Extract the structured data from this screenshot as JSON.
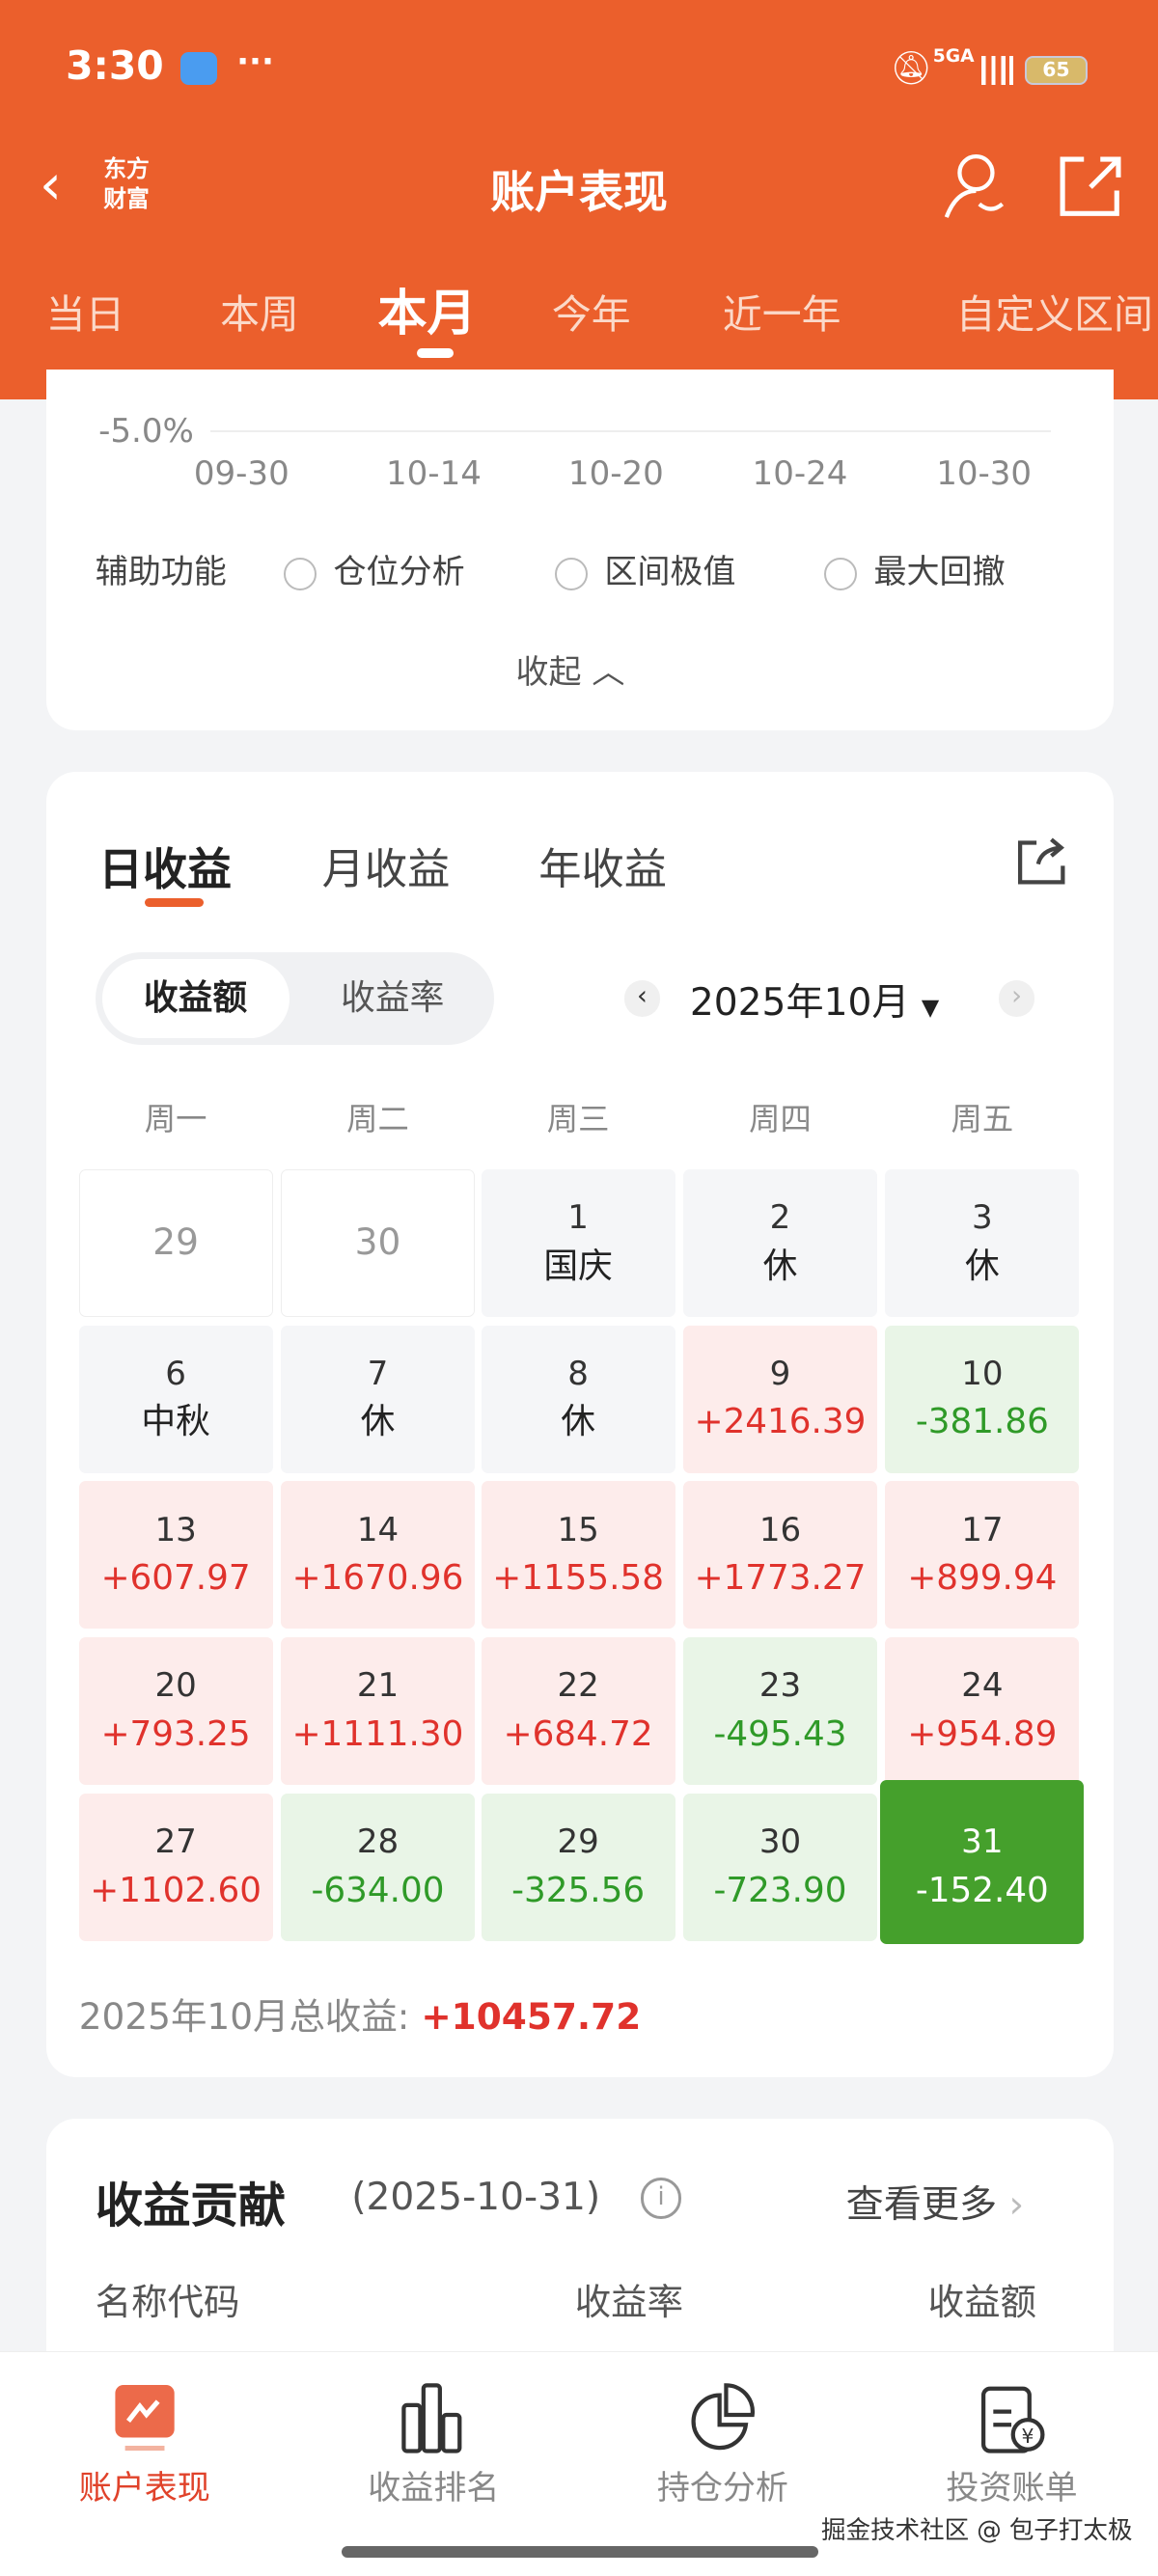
{
  "status_bar": {
    "time": "3:30",
    "more": "···",
    "network": "5GA",
    "battery": "65"
  },
  "header": {
    "title": "账户表现",
    "logo_text": "东方财富",
    "tabs": [
      {
        "label": "当日"
      },
      {
        "label": "本周"
      },
      {
        "label": "本月",
        "active": true
      },
      {
        "label": "今年"
      },
      {
        "label": "近一年"
      },
      {
        "label": "自定义区间"
      }
    ]
  },
  "chart_tail": {
    "y_tick": "-5.0%",
    "x_ticks": [
      "09-30",
      "10-14",
      "10-20",
      "10-24",
      "10-30"
    ],
    "aux_label": "辅助功能",
    "options": [
      "仓位分析",
      "区间极值",
      "最大回撤"
    ],
    "collapse": "收起"
  },
  "income": {
    "tabs": [
      "日收益",
      "月收益",
      "年收益"
    ],
    "active_tab": "日收益",
    "toggle": [
      "收益额",
      "收益率"
    ],
    "toggle_selected": "收益额",
    "month": "2025年10月",
    "weekdays": [
      "周一",
      "周二",
      "周三",
      "周四",
      "周五"
    ],
    "cells": [
      {
        "d": "29",
        "v": "",
        "t": "empty"
      },
      {
        "d": "30",
        "v": "",
        "t": "empty"
      },
      {
        "d": "1",
        "v": "国庆",
        "t": "hol"
      },
      {
        "d": "2",
        "v": "休",
        "t": "hol"
      },
      {
        "d": "3",
        "v": "休",
        "t": "hol"
      },
      {
        "d": "6",
        "v": "中秋",
        "t": "hol"
      },
      {
        "d": "7",
        "v": "休",
        "t": "hol"
      },
      {
        "d": "8",
        "v": "休",
        "t": "hol"
      },
      {
        "d": "9",
        "v": "+2416.39",
        "t": "up"
      },
      {
        "d": "10",
        "v": "-381.86",
        "t": "dn"
      },
      {
        "d": "13",
        "v": "+607.97",
        "t": "up"
      },
      {
        "d": "14",
        "v": "+1670.96",
        "t": "up"
      },
      {
        "d": "15",
        "v": "+1155.58",
        "t": "up"
      },
      {
        "d": "16",
        "v": "+1773.27",
        "t": "up"
      },
      {
        "d": "17",
        "v": "+899.94",
        "t": "up"
      },
      {
        "d": "20",
        "v": "+793.25",
        "t": "up"
      },
      {
        "d": "21",
        "v": "+1111.30",
        "t": "up"
      },
      {
        "d": "22",
        "v": "+684.72",
        "t": "up"
      },
      {
        "d": "23",
        "v": "-495.43",
        "t": "dn"
      },
      {
        "d": "24",
        "v": "+954.89",
        "t": "up"
      },
      {
        "d": "27",
        "v": "+1102.60",
        "t": "up"
      },
      {
        "d": "28",
        "v": "-634.00",
        "t": "dn"
      },
      {
        "d": "29",
        "v": "-325.56",
        "t": "dn"
      },
      {
        "d": "30",
        "v": "-723.90",
        "t": "dn"
      },
      {
        "d": "31",
        "v": "-152.40",
        "t": "sel"
      }
    ],
    "total_label": "2025年10月总收益:",
    "total_value": "+10457.72"
  },
  "contribution": {
    "title": "收益贡献",
    "date": "(2025-10-31)",
    "more": "查看更多",
    "columns": [
      "名称代码",
      "收益率",
      "收益额"
    ]
  },
  "bottom_nav": [
    {
      "label": "账户表现",
      "active": true
    },
    {
      "label": "收益排名"
    },
    {
      "label": "持仓分析"
    },
    {
      "label": "投资账单"
    }
  ],
  "watermark": "掘金技术社区 @ 包子打太极",
  "colors": {
    "brand": "#eb5f2c",
    "up": "#e0322c",
    "down": "#2f9a28",
    "selected": "#45a02c"
  }
}
